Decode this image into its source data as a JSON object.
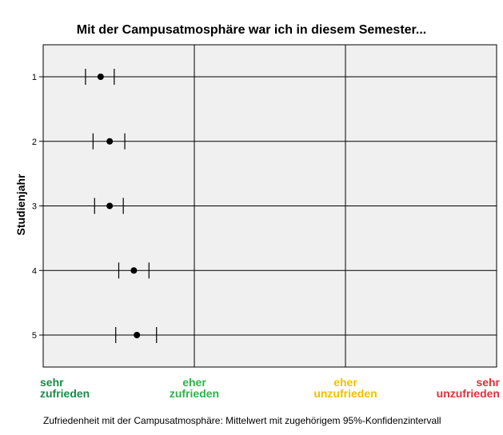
{
  "chart_data": {
    "type": "errorbar",
    "title": "Mit der Campusatmosphäre war ich in diesem Semester...",
    "ylabel": "Studienjahr",
    "xlabel": "Zufriedenheit mit der Campusatmosphäre: Mittelwert mit zugehörigem 95%-Konfidenzintervall",
    "xlim": [
      1,
      4
    ],
    "categories": [
      "1",
      "2",
      "3",
      "4",
      "5"
    ],
    "x_categories": [
      {
        "line1": "sehr",
        "line2": "zufrieden",
        "color": "#1a8a4a"
      },
      {
        "line1": "eher",
        "line2": "zufrieden",
        "color": "#2db34a"
      },
      {
        "line1": "eher",
        "line2": "unzufrieden",
        "color": "#f0c000"
      },
      {
        "line1": "sehr",
        "line2": "unzufrieden",
        "color": "#e0303a"
      }
    ],
    "series": [
      {
        "values": [
          1.38,
          1.44,
          1.44,
          1.6,
          1.62
        ],
        "ci_low": [
          1.28,
          1.33,
          1.34,
          1.5,
          1.48
        ],
        "ci_high": [
          1.47,
          1.54,
          1.53,
          1.7,
          1.75
        ]
      }
    ],
    "grid": true
  }
}
